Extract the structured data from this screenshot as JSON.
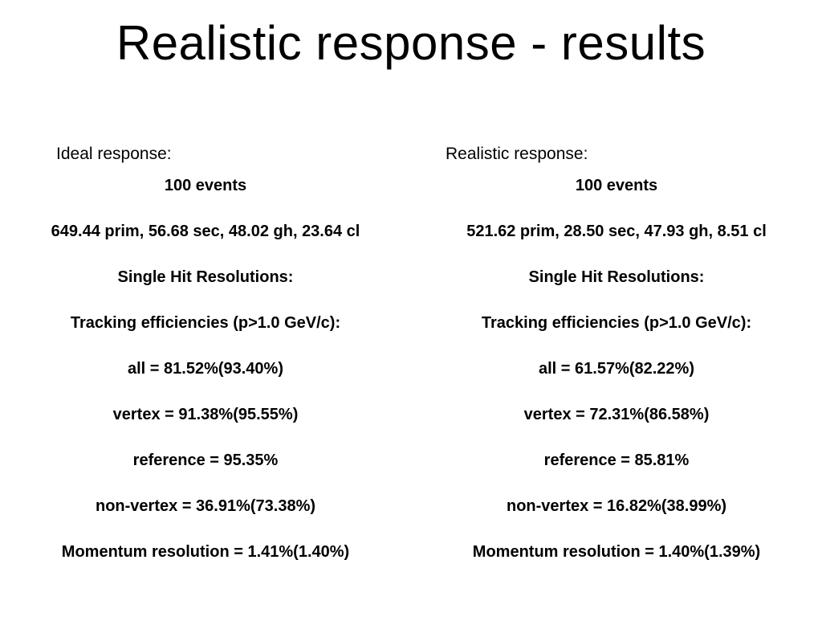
{
  "title": "Realistic response - results",
  "columns": [
    {
      "heading": "Ideal response:",
      "lines": [
        "100 events",
        "649.44 prim, 56.68 sec, 48.02 gh, 23.64 cl",
        "Single Hit Resolutions:",
        "Tracking efficiencies (p>1.0 GeV/c):",
        "all = 81.52%(93.40%)",
        "vertex = 91.38%(95.55%)",
        "reference = 95.35%",
        "non-vertex = 36.91%(73.38%)",
        "Momentum resolution = 1.41%(1.40%)"
      ]
    },
    {
      "heading": "Realistic response:",
      "lines": [
        "100 events",
        "521.62 prim, 28.50 sec, 47.93 gh, 8.51 cl",
        "Single Hit Resolutions:",
        "Tracking efficiencies (p>1.0 GeV/c):",
        "all = 61.57%(82.22%)",
        "vertex = 72.31%(86.58%)",
        "reference = 85.81%",
        "non-vertex = 16.82%(38.99%)",
        "Momentum resolution = 1.40%(1.39%)"
      ]
    }
  ]
}
